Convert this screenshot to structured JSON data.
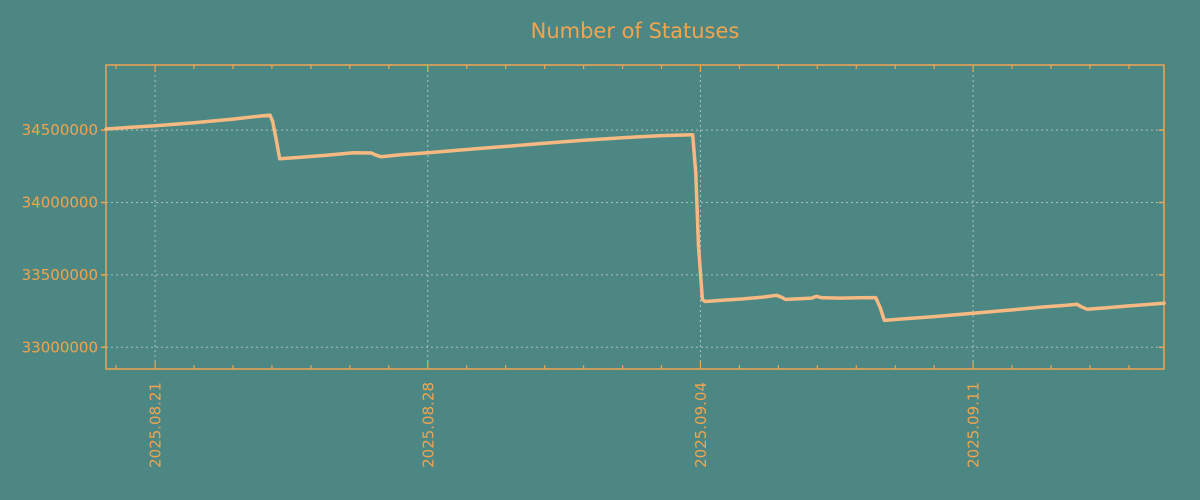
{
  "title": "Number of Statuses",
  "colors": {
    "background": "#4d8783",
    "frame": "#f0a44f",
    "text": "#f0a44f",
    "line": "#f6b982",
    "grid": "#c2cbc4"
  },
  "chart_data": {
    "type": "line",
    "title": "Number of Statuses",
    "x_unit": "days since 2025-08-21",
    "xlim": [
      -1.26,
      25.9
    ],
    "ylim": [
      32850000,
      34950000
    ],
    "y_ticks": [
      33000000,
      33500000,
      34000000,
      34500000
    ],
    "x_major_ticks": [
      {
        "day": 0,
        "label": "2025.08.21"
      },
      {
        "day": 7,
        "label": "2025.08.28"
      },
      {
        "day": 14,
        "label": "2025.09.04"
      },
      {
        "day": 21,
        "label": "2025.09.11"
      }
    ],
    "x_minor_tick_every_days": 1,
    "grid": true,
    "legend": false,
    "series": [
      {
        "name": "statuses",
        "points": [
          [
            -1.26,
            34508000
          ],
          [
            -0.6,
            34520000
          ],
          [
            0,
            34530000
          ],
          [
            1,
            34551000
          ],
          [
            2,
            34576000
          ],
          [
            2.6,
            34594000
          ],
          [
            2.95,
            34604000
          ],
          [
            3.02,
            34560000
          ],
          [
            3.12,
            34420000
          ],
          [
            3.2,
            34303000
          ],
          [
            3.7,
            34312000
          ],
          [
            4.4,
            34327000
          ],
          [
            5.1,
            34344000
          ],
          [
            5.55,
            34342000
          ],
          [
            5.65,
            34330000
          ],
          [
            5.8,
            34316000
          ],
          [
            6.3,
            34330000
          ],
          [
            7,
            34344000
          ],
          [
            8,
            34366000
          ],
          [
            9,
            34388000
          ],
          [
            10,
            34410000
          ],
          [
            11,
            34430000
          ],
          [
            12,
            34448000
          ],
          [
            13,
            34462000
          ],
          [
            13.8,
            34468000
          ],
          [
            13.88,
            34200000
          ],
          [
            13.95,
            33700000
          ],
          [
            14.05,
            33330000
          ],
          [
            14.12,
            33316000
          ],
          [
            14.6,
            33326000
          ],
          [
            15.1,
            33334000
          ],
          [
            15.6,
            33347000
          ],
          [
            15.95,
            33359000
          ],
          [
            16.08,
            33346000
          ],
          [
            16.18,
            33331000
          ],
          [
            16.55,
            33335000
          ],
          [
            16.85,
            33340000
          ],
          [
            16.98,
            33352000
          ],
          [
            17.12,
            33342000
          ],
          [
            17.6,
            33340000
          ],
          [
            18.1,
            33342000
          ],
          [
            18.5,
            33343000
          ],
          [
            18.62,
            33270000
          ],
          [
            18.72,
            33186000
          ],
          [
            19.2,
            33196000
          ],
          [
            20,
            33212000
          ],
          [
            21,
            33235000
          ],
          [
            22,
            33258000
          ],
          [
            22.8,
            33278000
          ],
          [
            23.4,
            33291000
          ],
          [
            23.67,
            33297000
          ],
          [
            23.78,
            33280000
          ],
          [
            23.92,
            33263000
          ],
          [
            24.4,
            33272000
          ],
          [
            25.0,
            33286000
          ],
          [
            25.55,
            33297000
          ],
          [
            25.9,
            33304000
          ]
        ]
      }
    ]
  }
}
